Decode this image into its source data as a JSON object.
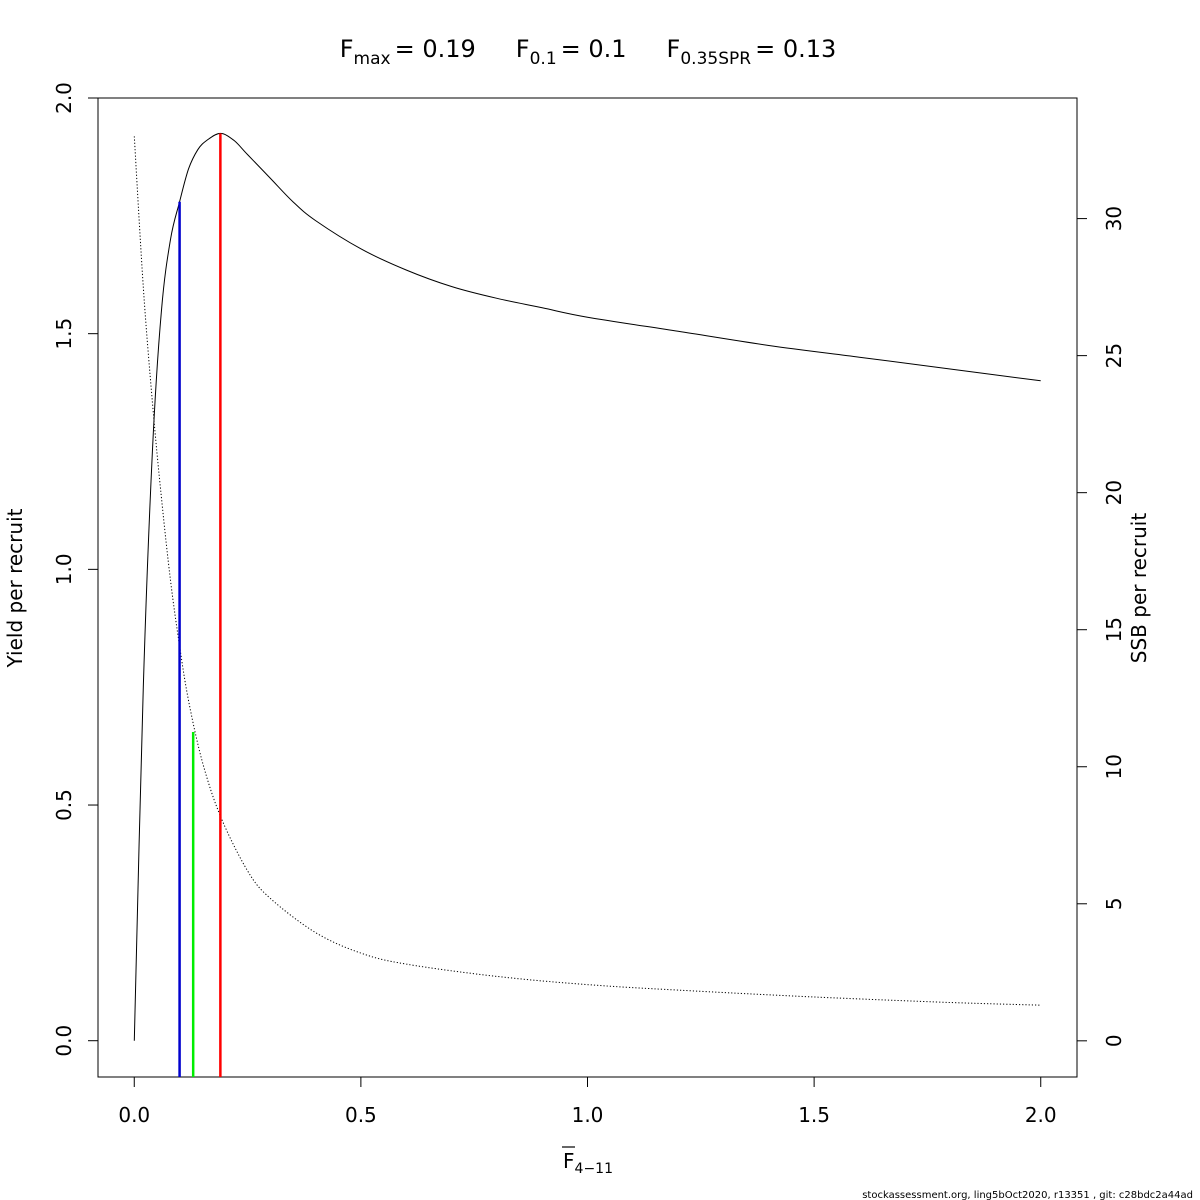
{
  "chart_data": {
    "type": "line",
    "title": {
      "fmax_sym": "F",
      "fmax_sub": "max",
      "fmax_val": "= 0.19",
      "f01_sym": "F",
      "f01_sub": "0.1",
      "f01_val": "= 0.1",
      "fspr_sym": "F",
      "fspr_sub": "0.35SPR",
      "fspr_val": "= 0.13"
    },
    "xlabel": {
      "sym": "F",
      "sub": "4−11"
    },
    "ylabel_left": "Yield per recruit",
    "ylabel_right": "SSB per recruit",
    "xlim": [
      -0.08,
      2.08
    ],
    "ylim_left": [
      -0.077,
      2.0
    ],
    "ylim_right": [
      -1.32,
      34.4
    ],
    "x_ticks": [
      "0.0",
      "0.5",
      "1.0",
      "1.5",
      "2.0"
    ],
    "x_tick_values": [
      0,
      0.5,
      1.0,
      1.5,
      2.0
    ],
    "y_left_ticks": [
      "0.0",
      "0.5",
      "1.0",
      "1.5",
      "2.0"
    ],
    "y_left_tick_values": [
      0,
      0.5,
      1.0,
      1.5,
      2.0
    ],
    "y_right_ticks": [
      "0",
      "5",
      "10",
      "15",
      "20",
      "25",
      "30"
    ],
    "y_right_tick_values": [
      0,
      5,
      10,
      15,
      20,
      25,
      30
    ],
    "series": [
      {
        "axis": "left",
        "style": "solid",
        "x": [
          0,
          0.02,
          0.04,
          0.06,
          0.08,
          0.1,
          0.12,
          0.14,
          0.16,
          0.19,
          0.22,
          0.25,
          0.3,
          0.35,
          0.4,
          0.5,
          0.6,
          0.7,
          0.8,
          0.9,
          1.0,
          1.2,
          1.4,
          1.6,
          1.8,
          2.0
        ],
        "y": [
          0,
          0.75,
          1.25,
          1.55,
          1.7,
          1.78,
          1.85,
          1.89,
          1.91,
          1.925,
          1.91,
          1.88,
          1.83,
          1.78,
          1.74,
          1.68,
          1.635,
          1.6,
          1.575,
          1.555,
          1.535,
          1.505,
          1.475,
          1.45,
          1.425,
          1.4
        ]
      },
      {
        "axis": "right",
        "style": "dotted",
        "x": [
          0,
          0.02,
          0.04,
          0.06,
          0.08,
          0.1,
          0.12,
          0.15,
          0.19,
          0.25,
          0.3,
          0.4,
          0.5,
          0.6,
          0.8,
          1.0,
          1.2,
          1.5,
          1.8,
          2.0
        ],
        "y": [
          33.0,
          27.5,
          23.3,
          19.8,
          16.8,
          14.4,
          12.4,
          10.2,
          8.2,
          6.2,
          5.2,
          3.95,
          3.2,
          2.8,
          2.35,
          2.05,
          1.85,
          1.6,
          1.4,
          1.3
        ]
      }
    ],
    "reference_lines": [
      {
        "x": 0.1,
        "y": 1.78,
        "color": "#0000cd"
      },
      {
        "x": 0.13,
        "y": 0.655,
        "color": "#00ee00"
      },
      {
        "x": 0.19,
        "y": 1.925,
        "color": "#ff0000"
      }
    ]
  },
  "footer": "stockassessment.org, ling5bOct2020, r13351 , git: c28bdc2a44ad"
}
